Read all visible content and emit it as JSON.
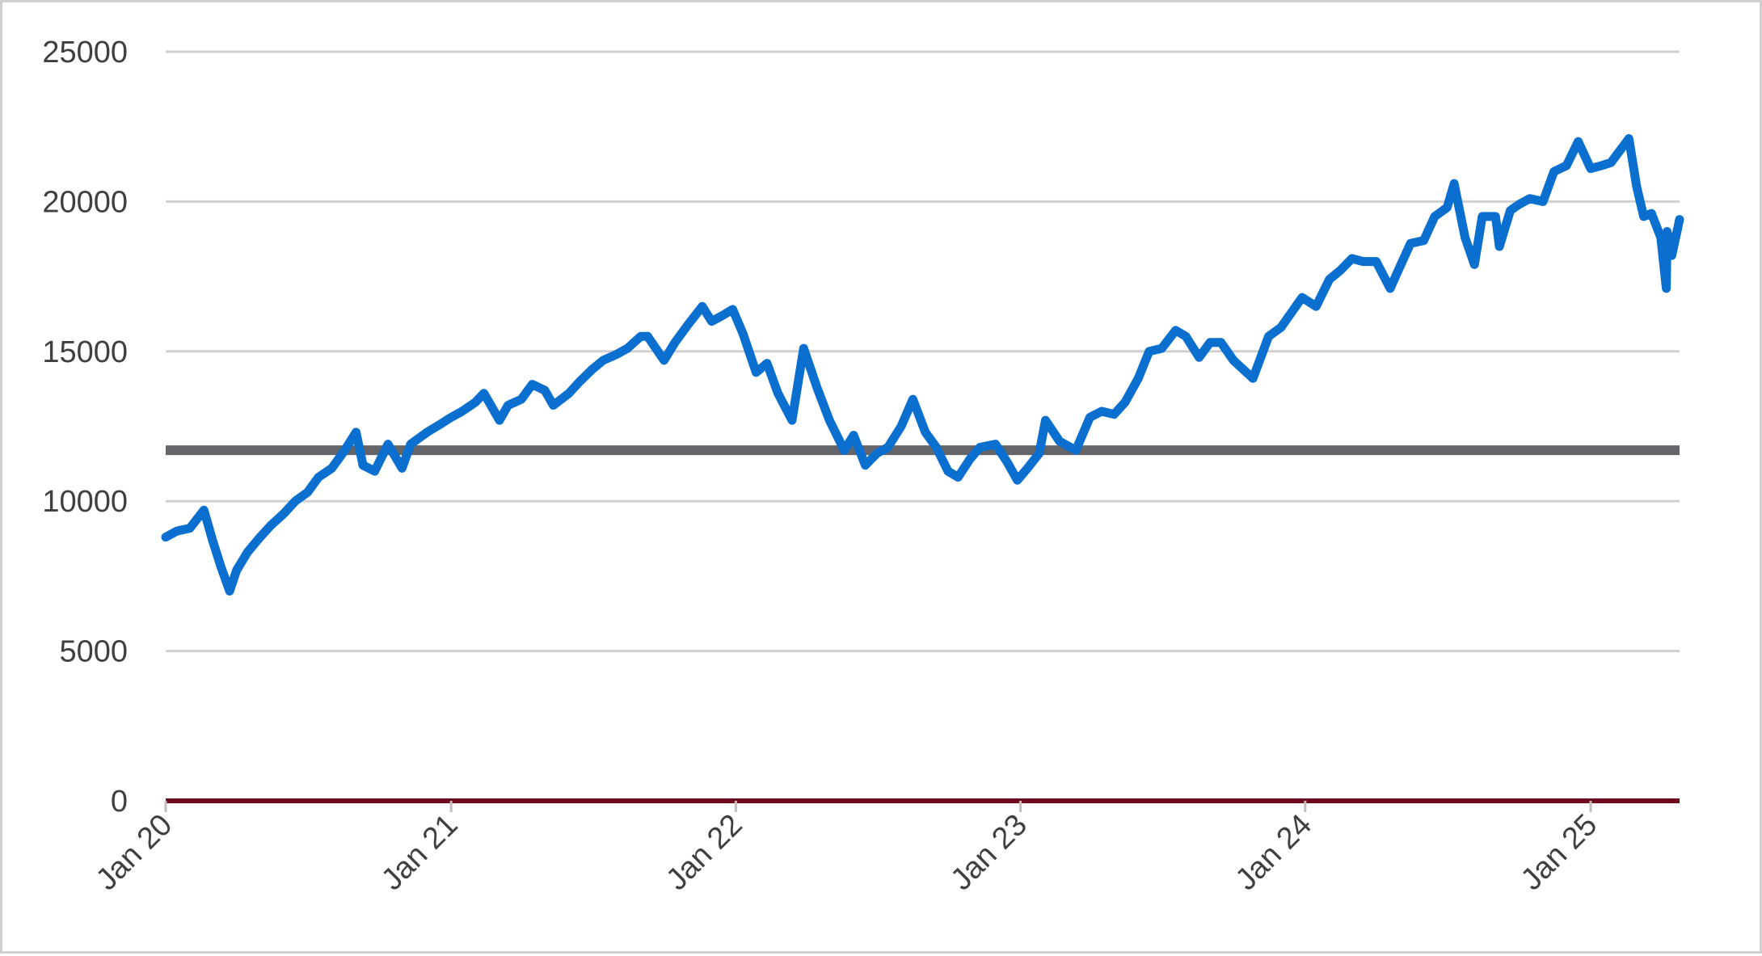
{
  "chart_data": {
    "type": "line",
    "title": "",
    "xlabel": "",
    "ylabel": "",
    "x_range": [
      "2020-01-01",
      "2025-04-25"
    ],
    "ylim": [
      0,
      25000
    ],
    "y_ticks": [
      0,
      5000,
      10000,
      15000,
      20000,
      25000
    ],
    "x_ticks": [
      {
        "date": "2020-01-01",
        "label": "Jan 20"
      },
      {
        "date": "2021-01-01",
        "label": "Jan 21"
      },
      {
        "date": "2022-01-01",
        "label": "Jan 22"
      },
      {
        "date": "2023-01-01",
        "label": "Jan 23"
      },
      {
        "date": "2024-01-01",
        "label": "Jan 24"
      },
      {
        "date": "2025-01-01",
        "label": "Jan 25"
      }
    ],
    "grid": true,
    "legend": "none",
    "series": [
      {
        "color": "#0a6fcf",
        "points": [
          [
            "2020-01-01",
            8800
          ],
          [
            "2020-01-15",
            9000
          ],
          [
            "2020-02-01",
            9100
          ],
          [
            "2020-02-19",
            9700
          ],
          [
            "2020-03-01",
            8700
          ],
          [
            "2020-03-12",
            7800
          ],
          [
            "2020-03-23",
            7000
          ],
          [
            "2020-04-01",
            7700
          ],
          [
            "2020-04-15",
            8300
          ],
          [
            "2020-05-01",
            8800
          ],
          [
            "2020-05-15",
            9200
          ],
          [
            "2020-06-01",
            9600
          ],
          [
            "2020-06-15",
            10000
          ],
          [
            "2020-07-01",
            10300
          ],
          [
            "2020-07-15",
            10800
          ],
          [
            "2020-08-01",
            11100
          ],
          [
            "2020-08-15",
            11600
          ],
          [
            "2020-09-01",
            12300
          ],
          [
            "2020-09-10",
            11200
          ],
          [
            "2020-09-25",
            11000
          ],
          [
            "2020-10-12",
            11900
          ],
          [
            "2020-10-30",
            11100
          ],
          [
            "2020-11-10",
            11900
          ],
          [
            "2020-12-01",
            12300
          ],
          [
            "2020-12-20",
            12600
          ],
          [
            "2021-01-01",
            12800
          ],
          [
            "2021-01-15",
            13000
          ],
          [
            "2021-02-01",
            13300
          ],
          [
            "2021-02-12",
            13600
          ],
          [
            "2021-03-04",
            12700
          ],
          [
            "2021-03-15",
            13200
          ],
          [
            "2021-04-01",
            13400
          ],
          [
            "2021-04-15",
            13900
          ],
          [
            "2021-05-01",
            13700
          ],
          [
            "2021-05-12",
            13200
          ],
          [
            "2021-06-01",
            13600
          ],
          [
            "2021-06-15",
            14000
          ],
          [
            "2021-07-01",
            14400
          ],
          [
            "2021-07-15",
            14700
          ],
          [
            "2021-08-01",
            14900
          ],
          [
            "2021-08-15",
            15100
          ],
          [
            "2021-09-01",
            15500
          ],
          [
            "2021-09-10",
            15500
          ],
          [
            "2021-10-01",
            14700
          ],
          [
            "2021-10-15",
            15300
          ],
          [
            "2021-11-01",
            15900
          ],
          [
            "2021-11-19",
            16500
          ],
          [
            "2021-12-01",
            16000
          ],
          [
            "2021-12-15",
            16200
          ],
          [
            "2021-12-28",
            16400
          ],
          [
            "2022-01-10",
            15600
          ],
          [
            "2022-01-27",
            14300
          ],
          [
            "2022-02-10",
            14600
          ],
          [
            "2022-02-24",
            13600
          ],
          [
            "2022-03-14",
            12700
          ],
          [
            "2022-03-29",
            15100
          ],
          [
            "2022-04-15",
            13800
          ],
          [
            "2022-05-01",
            12700
          ],
          [
            "2022-05-20",
            11700
          ],
          [
            "2022-06-01",
            12200
          ],
          [
            "2022-06-16",
            11200
          ],
          [
            "2022-07-01",
            11600
          ],
          [
            "2022-07-15",
            11800
          ],
          [
            "2022-08-01",
            12500
          ],
          [
            "2022-08-16",
            13400
          ],
          [
            "2022-09-01",
            12300
          ],
          [
            "2022-09-15",
            11800
          ],
          [
            "2022-09-30",
            11000
          ],
          [
            "2022-10-13",
            10800
          ],
          [
            "2022-10-28",
            11400
          ],
          [
            "2022-11-10",
            11800
          ],
          [
            "2022-11-30",
            11900
          ],
          [
            "2022-12-15",
            11300
          ],
          [
            "2022-12-28",
            10700
          ],
          [
            "2023-01-10",
            11100
          ],
          [
            "2023-01-25",
            11600
          ],
          [
            "2023-02-02",
            12700
          ],
          [
            "2023-02-20",
            12000
          ],
          [
            "2023-03-13",
            11700
          ],
          [
            "2023-03-31",
            12800
          ],
          [
            "2023-04-15",
            13000
          ],
          [
            "2023-05-01",
            12900
          ],
          [
            "2023-05-15",
            13300
          ],
          [
            "2023-06-01",
            14100
          ],
          [
            "2023-06-15",
            15000
          ],
          [
            "2023-07-01",
            15100
          ],
          [
            "2023-07-19",
            15700
          ],
          [
            "2023-08-01",
            15500
          ],
          [
            "2023-08-18",
            14800
          ],
          [
            "2023-09-01",
            15300
          ],
          [
            "2023-09-15",
            15300
          ],
          [
            "2023-10-01",
            14700
          ],
          [
            "2023-10-26",
            14100
          ],
          [
            "2023-11-15",
            15500
          ],
          [
            "2023-12-01",
            15800
          ],
          [
            "2023-12-28",
            16800
          ],
          [
            "2024-01-15",
            16500
          ],
          [
            "2024-02-01",
            17400
          ],
          [
            "2024-02-15",
            17700
          ],
          [
            "2024-03-01",
            18100
          ],
          [
            "2024-03-15",
            18000
          ],
          [
            "2024-04-01",
            18000
          ],
          [
            "2024-04-19",
            17100
          ],
          [
            "2024-05-01",
            17800
          ],
          [
            "2024-05-15",
            18600
          ],
          [
            "2024-06-01",
            18700
          ],
          [
            "2024-06-15",
            19500
          ],
          [
            "2024-07-01",
            19800
          ],
          [
            "2024-07-10",
            20600
          ],
          [
            "2024-07-24",
            18800
          ],
          [
            "2024-08-05",
            17900
          ],
          [
            "2024-08-15",
            19500
          ],
          [
            "2024-09-01",
            19500
          ],
          [
            "2024-09-06",
            18500
          ],
          [
            "2024-09-20",
            19700
          ],
          [
            "2024-10-01",
            19900
          ],
          [
            "2024-10-15",
            20100
          ],
          [
            "2024-11-01",
            20000
          ],
          [
            "2024-11-15",
            21000
          ],
          [
            "2024-12-01",
            21200
          ],
          [
            "2024-12-16",
            22000
          ],
          [
            "2025-01-01",
            21100
          ],
          [
            "2025-01-15",
            21200
          ],
          [
            "2025-01-27",
            21300
          ],
          [
            "2025-02-19",
            22100
          ],
          [
            "2025-03-01",
            20500
          ],
          [
            "2025-03-10",
            19500
          ],
          [
            "2025-03-20",
            19600
          ],
          [
            "2025-04-01",
            18800
          ],
          [
            "2025-04-08",
            17100
          ],
          [
            "2025-04-09",
            19000
          ],
          [
            "2025-04-15",
            18200
          ],
          [
            "2025-04-25",
            19400
          ]
        ]
      }
    ],
    "reference_lines": [
      {
        "y": 11700,
        "color": "#636569"
      },
      {
        "y": 0,
        "color": "#6e0a1e"
      }
    ],
    "gridline_color": "#d0d0d0"
  }
}
